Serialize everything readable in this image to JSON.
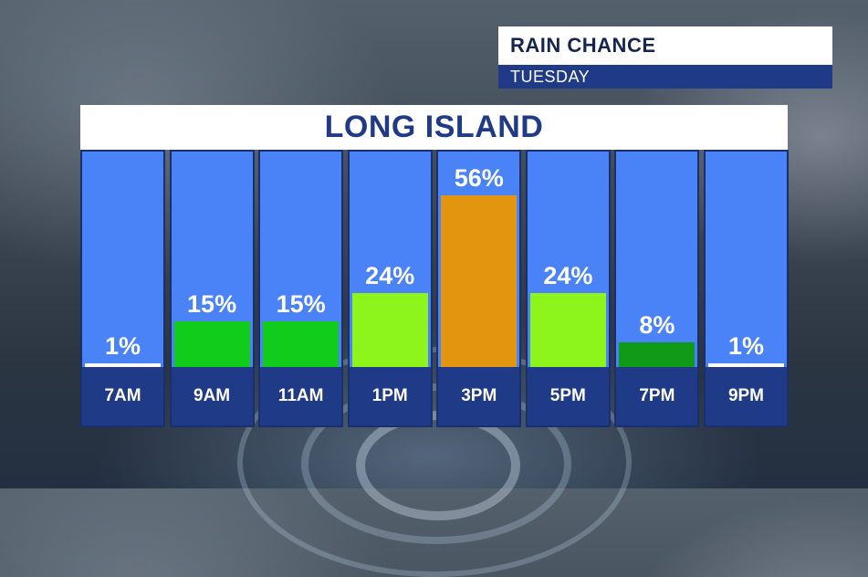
{
  "header": {
    "title": "RAIN CHANCE",
    "subtitle": "TUESDAY"
  },
  "chart_data": {
    "type": "bar",
    "title": "LONG ISLAND",
    "xlabel": "",
    "ylabel": "",
    "ylim": [
      0,
      100
    ],
    "grid": false,
    "categories": [
      "7AM",
      "9AM",
      "11AM",
      "1PM",
      "3PM",
      "5PM",
      "7PM",
      "9PM"
    ],
    "values": [
      1,
      15,
      15,
      24,
      56,
      24,
      8,
      1
    ],
    "value_labels": [
      "1%",
      "15%",
      "15%",
      "24%",
      "56%",
      "24%",
      "8%",
      "1%"
    ],
    "bar_colors": [
      "#ffffff",
      "#12cc1c",
      "#12cc1c",
      "#8ef51c",
      "#e2960f",
      "#8ef51c",
      "#0f9a18",
      "#ffffff"
    ]
  },
  "colors": {
    "column_background": "#4a82f7",
    "label_strip": "#1f3a86",
    "title_text": "#1f3a86"
  }
}
